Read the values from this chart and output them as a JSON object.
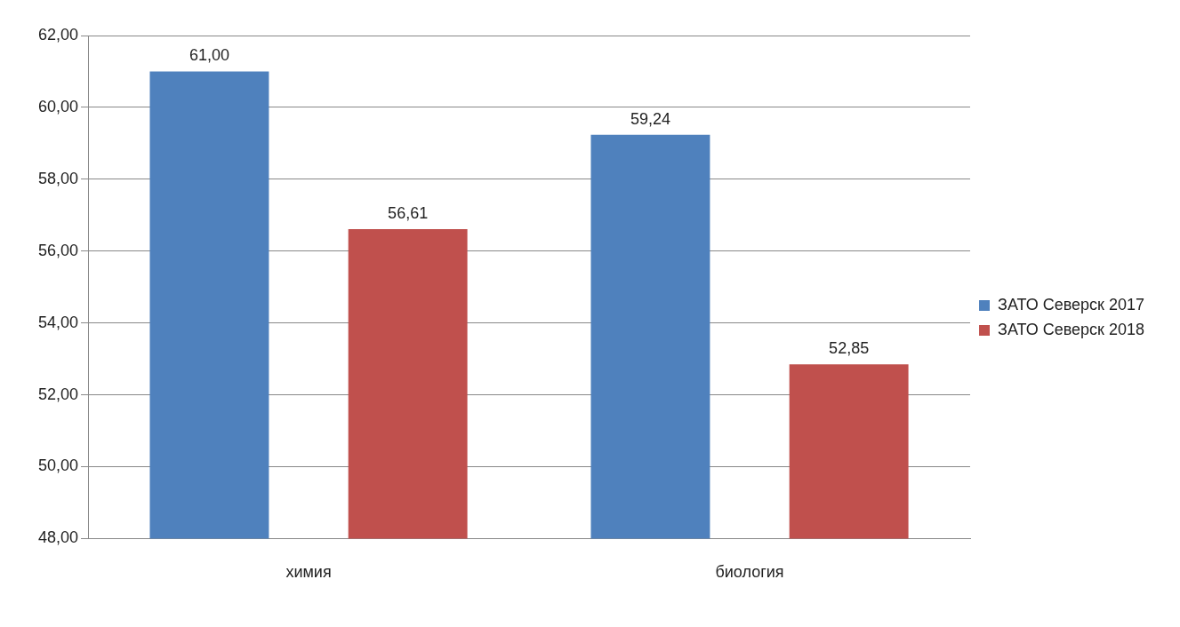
{
  "chart_data": {
    "type": "bar",
    "categories": [
      "химия",
      "биология"
    ],
    "series": [
      {
        "name": "ЗАТО Северск 2017",
        "color": "#4f81bd",
        "values": [
          61.0,
          59.24
        ],
        "value_labels": [
          "61,00",
          "59,24"
        ]
      },
      {
        "name": "ЗАТО Северск 2018",
        "color": "#c0504d",
        "values": [
          56.61,
          52.85
        ],
        "value_labels": [
          "56,61",
          "52,85"
        ]
      }
    ],
    "ylim": [
      48,
      62
    ],
    "yticks": [
      {
        "value": 48,
        "label": "48,00"
      },
      {
        "value": 50,
        "label": "50,00"
      },
      {
        "value": 52,
        "label": "52,00"
      },
      {
        "value": 54,
        "label": "54,00"
      },
      {
        "value": 56,
        "label": "56,00"
      },
      {
        "value": 58,
        "label": "58,00"
      },
      {
        "value": 60,
        "label": "60,00"
      },
      {
        "value": 62,
        "label": "62,00"
      }
    ],
    "grid": "y",
    "legend": "right"
  }
}
